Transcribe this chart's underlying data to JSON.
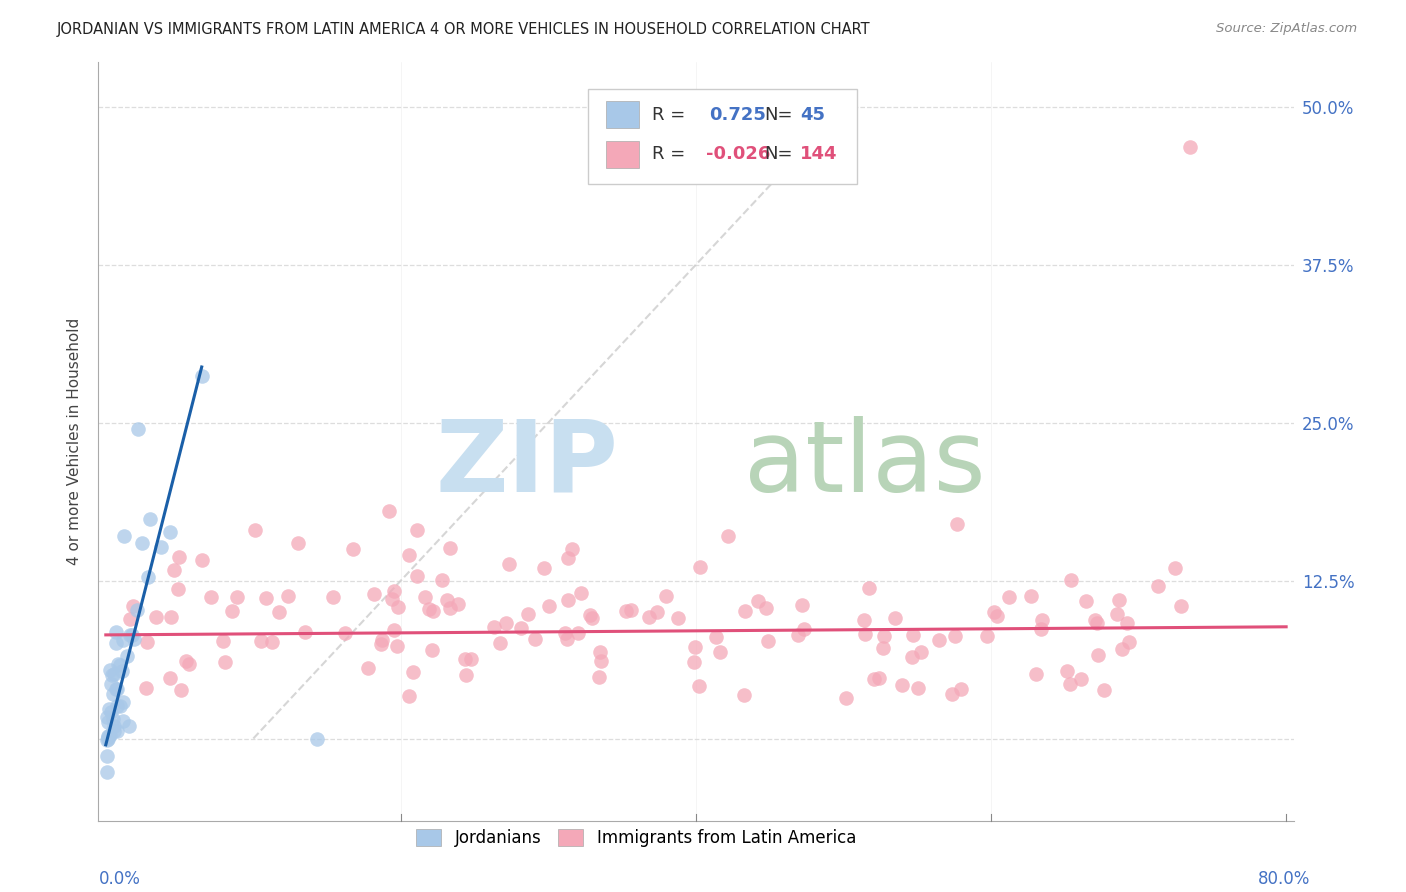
{
  "title": "JORDANIAN VS IMMIGRANTS FROM LATIN AMERICA 4 OR MORE VEHICLES IN HOUSEHOLD CORRELATION CHART",
  "source": "Source: ZipAtlas.com",
  "ylabel": "4 or more Vehicles in Household",
  "ytick_labels": [
    "",
    "12.5%",
    "25.0%",
    "37.5%",
    "50.0%"
  ],
  "ytick_values": [
    0.0,
    0.125,
    0.25,
    0.375,
    0.5
  ],
  "xlim": [
    -0.005,
    0.805
  ],
  "ylim": [
    -0.065,
    0.535
  ],
  "blue_color": "#a8c8e8",
  "pink_color": "#f4a8b8",
  "blue_line_color": "#1a5fa8",
  "pink_line_color": "#e0507a",
  "diag_color": "#cccccc",
  "watermark_zip_color": "#c8dff0",
  "watermark_atlas_color": "#b8d4b8",
  "right_label_color": "#4472c4",
  "grid_color": "#dddddd",
  "legend_r_blue": "0.725",
  "legend_n_blue": "45",
  "legend_r_pink": "-0.026",
  "legend_n_pink": "144",
  "title_fontsize": 10.5,
  "axis_label_fontsize": 11,
  "tick_label_fontsize": 12,
  "legend_fontsize": 12
}
